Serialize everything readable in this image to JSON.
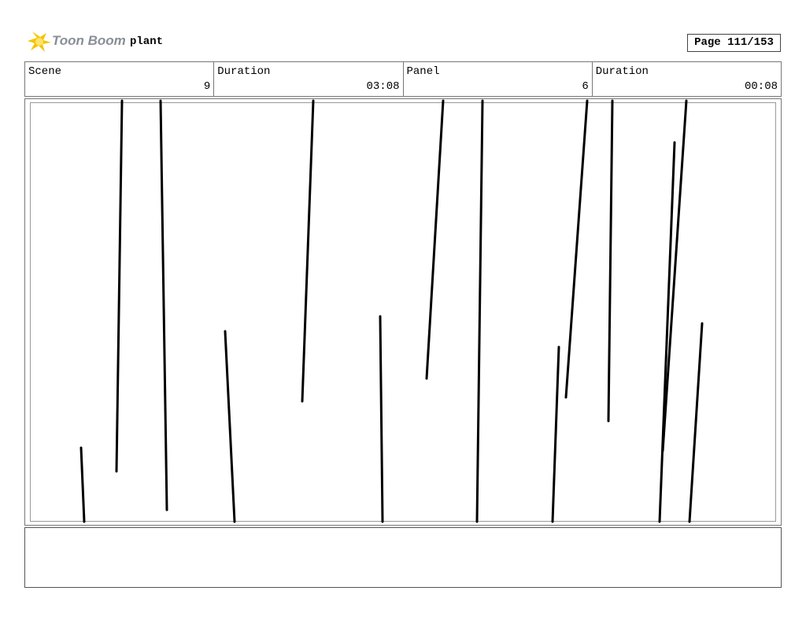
{
  "header": {
    "logo": "Toon Boom",
    "title": "plant",
    "page": "Page 111/153"
  },
  "info": [
    {
      "label": "Scene",
      "value": "9"
    },
    {
      "label": "Duration",
      "value": "03:08"
    },
    {
      "label": "Panel",
      "value": "6"
    },
    {
      "label": "Duration",
      "value": "00:08"
    }
  ]
}
